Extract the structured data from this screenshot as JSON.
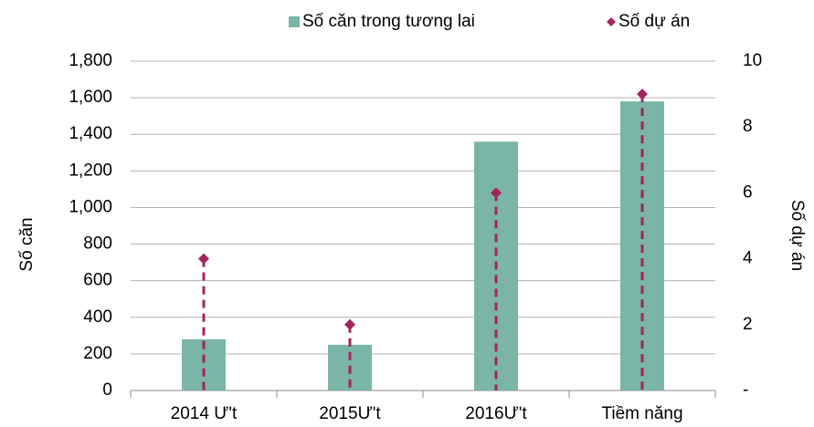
{
  "chart_data": {
    "type": "bar",
    "categories": [
      "2014 Ư't",
      "2015Ư't",
      "2016Ư't",
      "Tiềm năng"
    ],
    "y_label": "Số căn",
    "y2_label": "Số dự án",
    "series": [
      {
        "name": "Số căn trong tương lai",
        "type": "bar",
        "color": "#7ab5a8",
        "values": [
          280,
          250,
          1360,
          1580
        ]
      },
      {
        "name": "Số dự án",
        "type": "scatter",
        "marker": "diamond",
        "drop_lines": true,
        "axis": "y2",
        "color": "#a3245f",
        "values": [
          4,
          2,
          6,
          9
        ]
      }
    ],
    "ylim": [
      0,
      1800
    ],
    "yticks": [
      0,
      200,
      400,
      600,
      800,
      {
        "value": 1000,
        "label": "1,000"
      },
      {
        "value": 1200,
        "label": "1,200"
      },
      {
        "value": 1400,
        "label": "1,400"
      },
      {
        "value": 1600,
        "label": "1,600"
      },
      {
        "value": 1800,
        "label": "1,800"
      }
    ],
    "y2lim": [
      0,
      10
    ],
    "y2ticks": [
      {
        "value": 0,
        "label": "-"
      },
      2,
      4,
      6,
      8,
      10
    ],
    "grid": true,
    "legend": "top"
  }
}
